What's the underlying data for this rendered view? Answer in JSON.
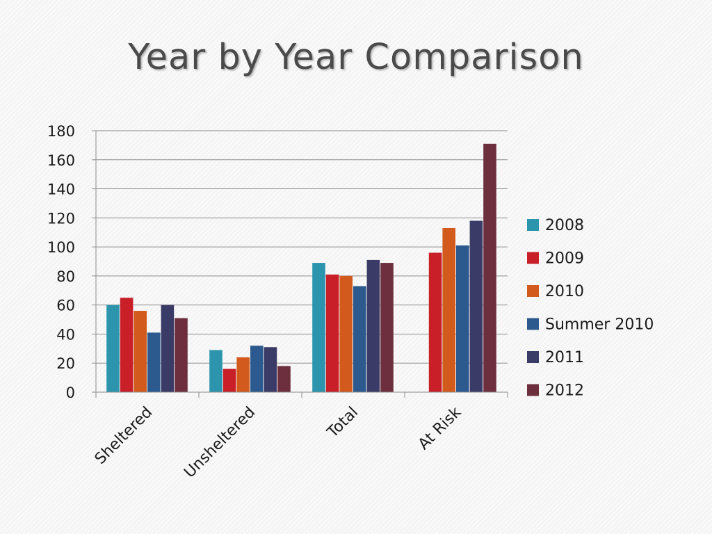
{
  "slide": {
    "title": "Year by Year Comparison"
  },
  "chart_data": {
    "type": "bar",
    "categories": [
      "Sheltered",
      "Unsheltered",
      "Total",
      "At Risk"
    ],
    "series": [
      {
        "name": "2008",
        "color": "#2c94ad",
        "values": [
          60,
          29,
          89,
          null
        ]
      },
      {
        "name": "2009",
        "color": "#c81f28",
        "values": [
          65,
          16,
          81,
          96
        ]
      },
      {
        "name": "2010",
        "color": "#d15a1c",
        "values": [
          56,
          24,
          80,
          113
        ]
      },
      {
        "name": "Summer 2010",
        "color": "#2d5a8e",
        "values": [
          41,
          32,
          73,
          101
        ]
      },
      {
        "name": "2011",
        "color": "#3a3b66",
        "values": [
          60,
          31,
          91,
          118
        ]
      },
      {
        "name": "2012",
        "color": "#6d2e3d",
        "values": [
          51,
          18,
          89,
          171
        ]
      }
    ],
    "yticks": [
      "0",
      "20",
      "40",
      "60",
      "80",
      "100",
      "120",
      "140",
      "160",
      "180"
    ],
    "ylim": [
      0,
      180
    ],
    "grid": true,
    "legend": "right"
  }
}
